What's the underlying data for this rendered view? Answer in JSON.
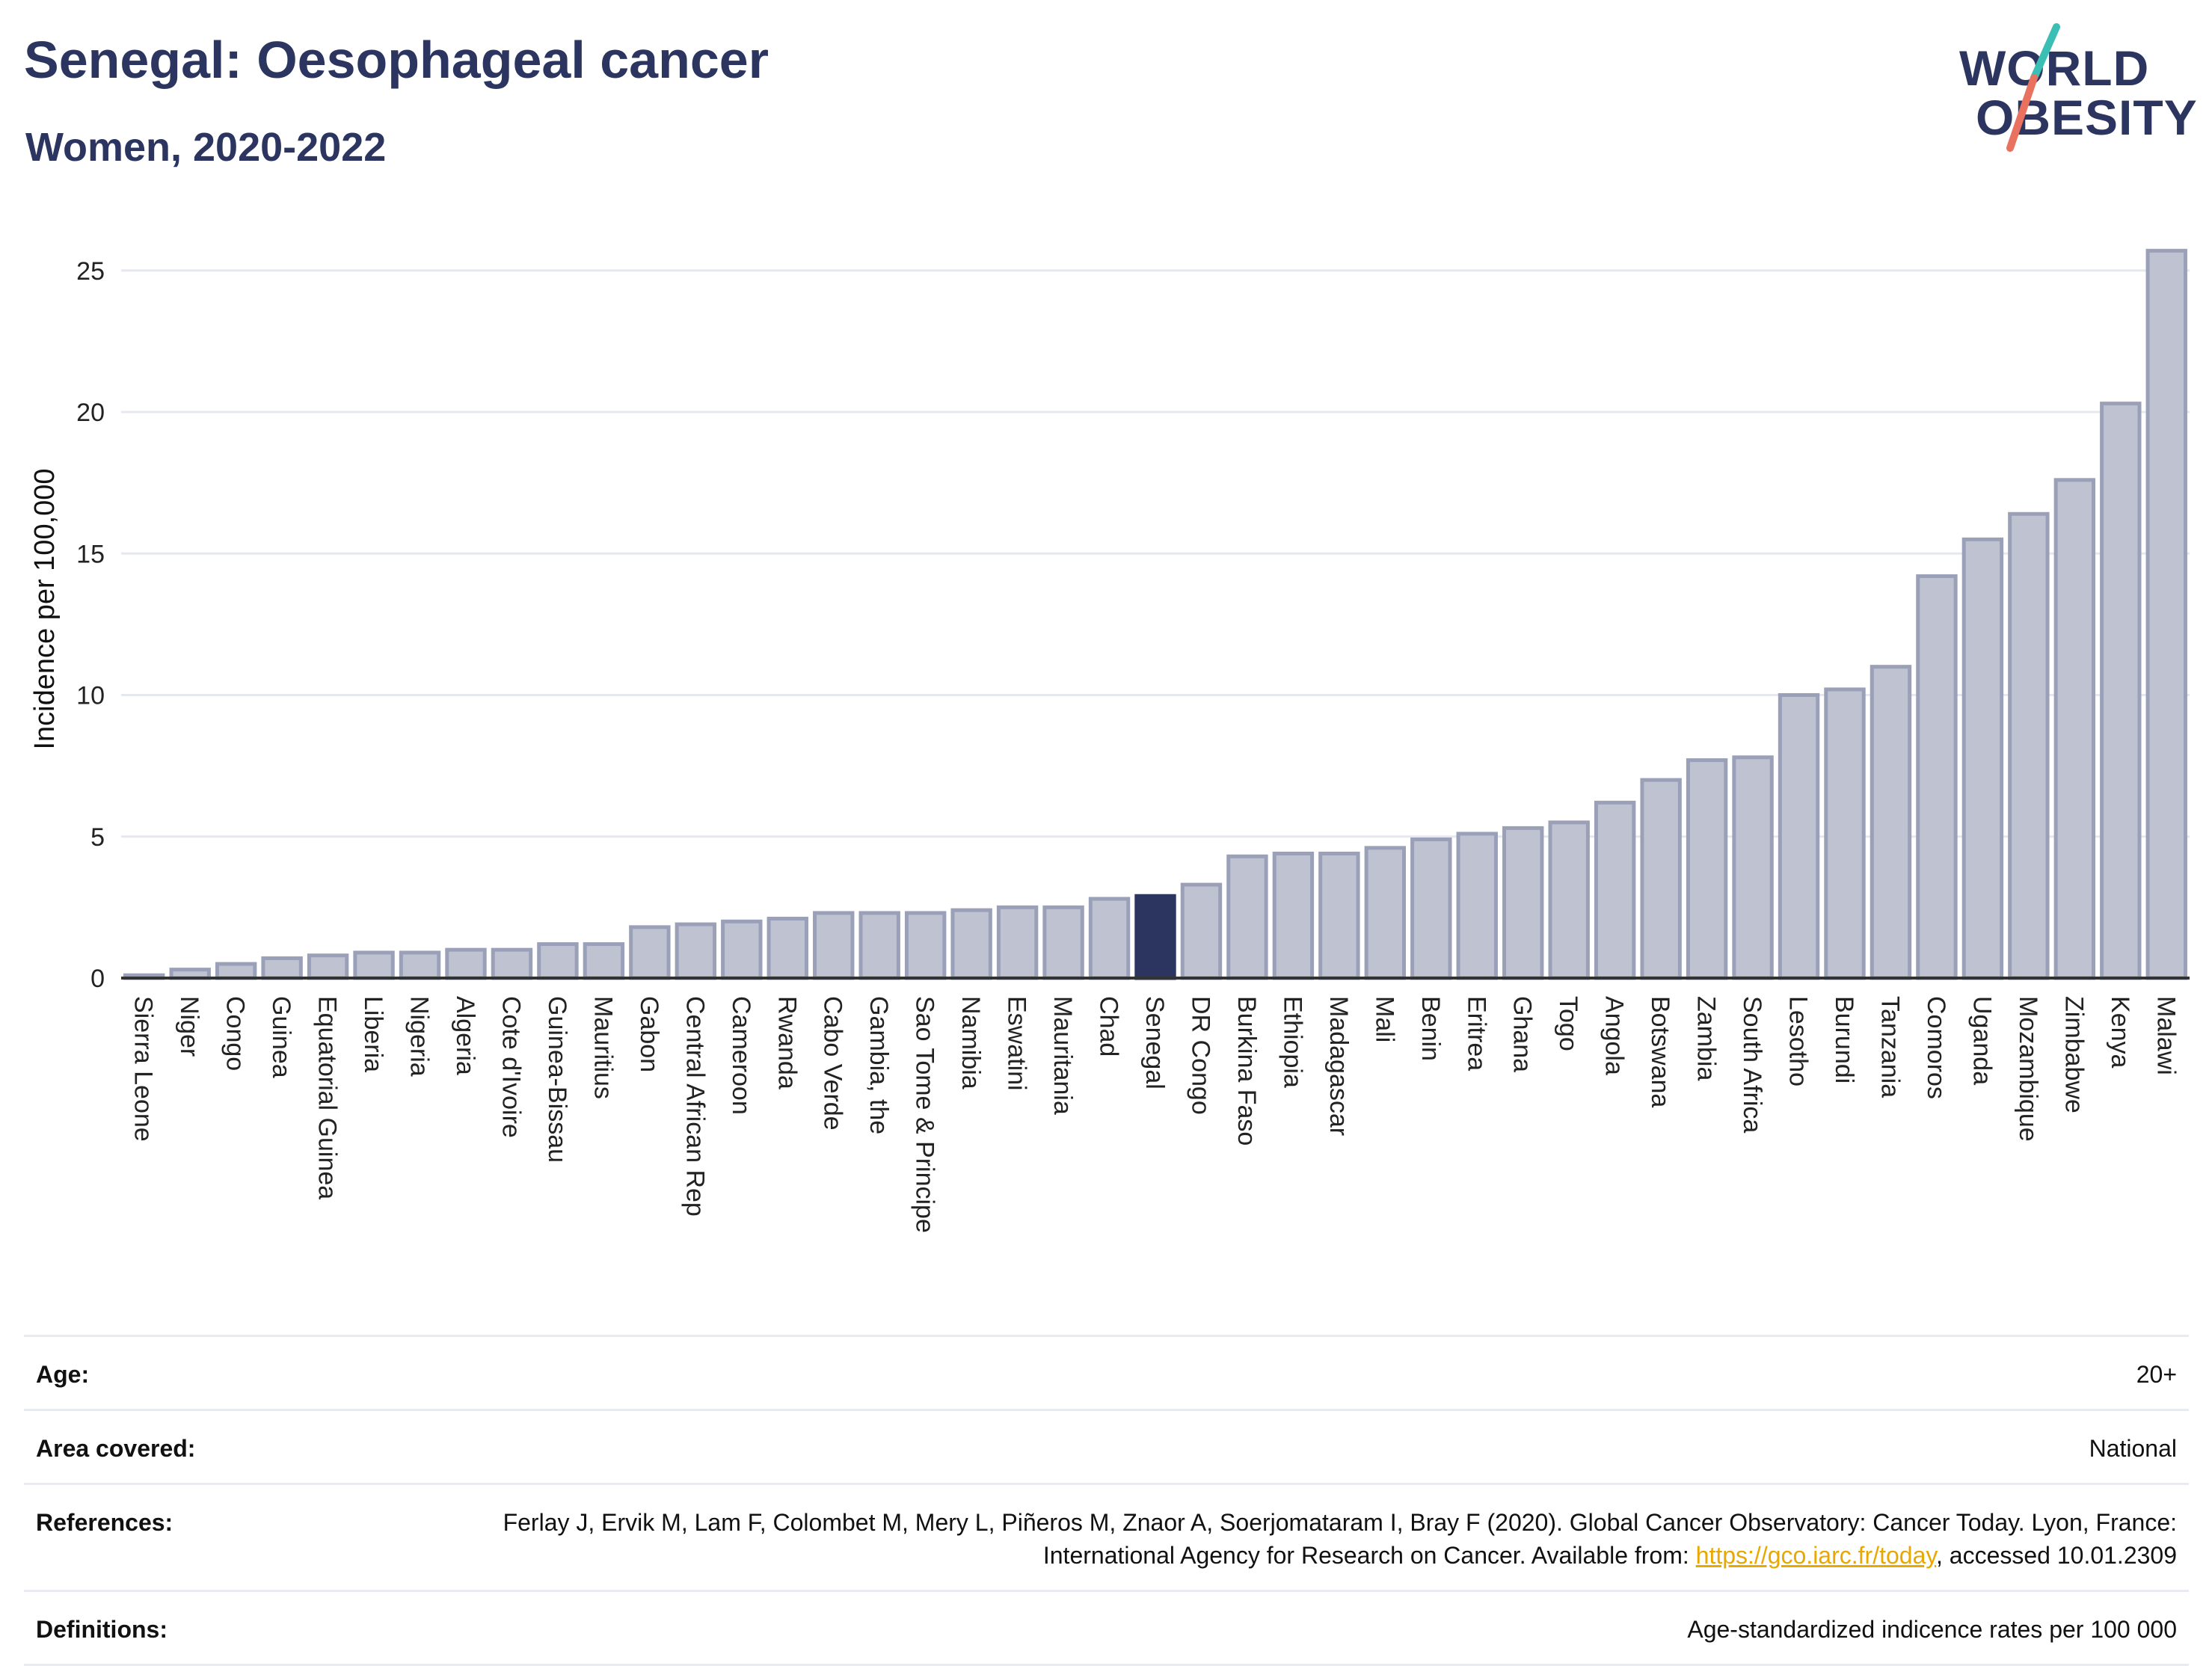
{
  "header": {
    "title": "Senegal: Oesophageal cancer",
    "subtitle": "Women, 2020-2022",
    "logo_line1": "WORLD",
    "logo_line2": "OBESITY"
  },
  "colors": {
    "bar": "#bfc3d1",
    "bar_border": "#9aa0b8",
    "highlight": "#2b3560",
    "grid": "#e6e8ef",
    "axis": "#333333",
    "logo_teal": "#3bbfb4",
    "logo_red": "#e8725f"
  },
  "chart_data": {
    "type": "bar",
    "title": "Senegal: Oesophageal cancer",
    "subtitle": "Women, 2020-2022",
    "xlabel": "",
    "ylabel": "Incidence per 100,000",
    "ylim": [
      0,
      26.5
    ],
    "yticks": [
      0,
      5,
      10,
      15,
      20,
      25
    ],
    "grid": true,
    "highlight": "Senegal",
    "categories": [
      "Sierra Leone",
      "Niger",
      "Congo",
      "Guinea",
      "Equatorial Guinea",
      "Liberia",
      "Nigeria",
      "Algeria",
      "Cote d'Ivoire",
      "Guinea-Bissau",
      "Mauritius",
      "Gabon",
      "Central African Rep",
      "Cameroon",
      "Rwanda",
      "Cabo Verde",
      "Gambia, the",
      "Sao Tome & Principe",
      "Namibia",
      "Eswatini",
      "Mauritania",
      "Chad",
      "Senegal",
      "DR Congo",
      "Burkina Faso",
      "Ethiopia",
      "Madagascar",
      "Mali",
      "Benin",
      "Eritrea",
      "Ghana",
      "Togo",
      "Angola",
      "Botswana",
      "Zambia",
      "South Africa",
      "Lesotho",
      "Burundi",
      "Tanzania",
      "Comoros",
      "Uganda",
      "Mozambique",
      "Zimbabwe",
      "Kenya",
      "Malawi"
    ],
    "values": [
      0.1,
      0.3,
      0.5,
      0.7,
      0.8,
      0.9,
      0.9,
      1.0,
      1.0,
      1.2,
      1.2,
      1.8,
      1.9,
      2.0,
      2.1,
      2.3,
      2.3,
      2.3,
      2.4,
      2.5,
      2.5,
      2.8,
      2.9,
      3.3,
      4.3,
      4.4,
      4.4,
      4.6,
      4.9,
      5.1,
      5.3,
      5.5,
      6.2,
      7.0,
      7.7,
      7.8,
      10.0,
      10.2,
      11.0,
      14.2,
      15.5,
      16.4,
      17.6,
      20.3,
      25.7
    ]
  },
  "meta": {
    "age_label": "Age:",
    "age_value": "20+",
    "area_label": "Area covered:",
    "area_value": "National",
    "references_label": "References:",
    "references_text_1": "Ferlay J, Ervik M, Lam F, Colombet M, Mery L, Piñeros M, Znaor A, Soerjomataram I, Bray F (2020). Global Cancer Observatory: Cancer Today. Lyon, France: International Agency for Research on Cancer. Available from: ",
    "references_link": "https://gco.iarc.fr/today",
    "references_text_2": ", accessed 10.01.2309",
    "definitions_label": "Definitions:",
    "definitions_value": "Age-standardized indicence rates per 100 000"
  }
}
